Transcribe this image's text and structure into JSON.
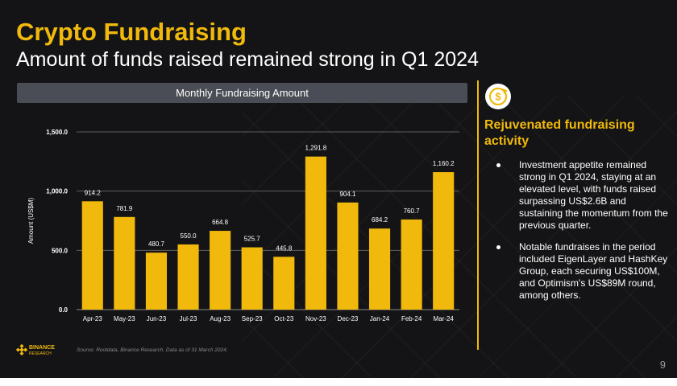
{
  "slide": {
    "title": "Crypto Fundraising",
    "subtitle": "Amount of funds raised remained strong in Q1 2024",
    "page_number": "9",
    "source": "Source: Rootdata, Binance Research. Data as of 31 March 2024.",
    "logo": {
      "name": "BINANCE",
      "sub": "RESEARCH"
    }
  },
  "sidebar": {
    "icon": "dollar-refresh-icon",
    "heading": "Rejuvenated fundraising activity",
    "bullets": [
      "Investment appetite remained strong in Q1 2024, staying at an elevated level, with funds raised surpassing US$2.6B and sustaining the momentum from the previous quarter.",
      "Notable fundraises in the period included EigenLayer and HashKey Group, each securing US$100M, and Optimism's US$89M round, among others."
    ]
  },
  "colors": {
    "accent": "#f0b90b",
    "background": "#141416",
    "header_bar": "#4a4d55",
    "gridline": "#6a6a6a"
  },
  "chart_data": {
    "type": "bar",
    "title": "Monthly Fundraising Amount",
    "ylabel": "Amount (US$M)",
    "xlabel": "",
    "categories": [
      "Apr-23",
      "May-23",
      "Jun-23",
      "Jul-23",
      "Aug-23",
      "Sep-23",
      "Oct-23",
      "Nov-23",
      "Dec-23",
      "Jan-24",
      "Feb-24",
      "Mar-24"
    ],
    "values": [
      914.2,
      781.9,
      480.7,
      550.0,
      664.8,
      525.7,
      445.8,
      1291.8,
      904.1,
      684.2,
      760.7,
      1160.2
    ],
    "value_labels": [
      "914.2",
      "781.9",
      "480.7",
      "550.0",
      "664.8",
      "525.7",
      "445.8",
      "1,291.8",
      "904.1",
      "684.2",
      "760.7",
      "1,160.2"
    ],
    "yticks": [
      0,
      500,
      1000,
      1500
    ],
    "ytick_labels": [
      "0.0",
      "500.0",
      "1,000.0",
      "1,500.0"
    ],
    "ylim": [
      0,
      1500
    ],
    "grid": true,
    "legend": "none",
    "bar_color": "#f0b90b"
  }
}
